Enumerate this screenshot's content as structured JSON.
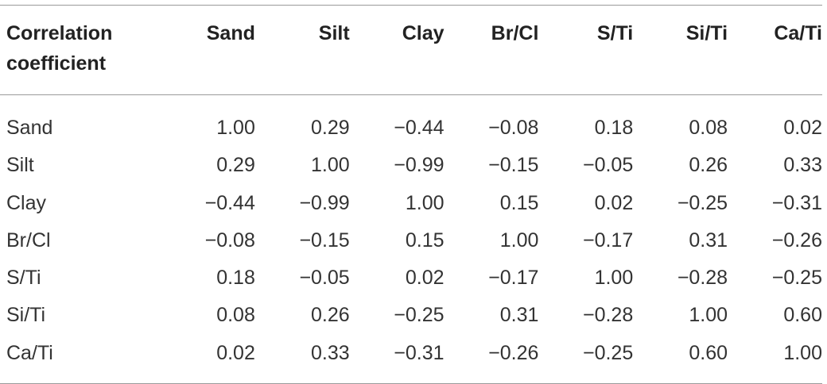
{
  "table": {
    "header": {
      "corner": [
        "Correlation",
        "coefficient"
      ],
      "columns": [
        "Sand",
        "Silt",
        "Clay",
        "Br/Cl",
        "S/Ti",
        "Si/Ti",
        "Ca/Ti"
      ]
    },
    "rows": [
      {
        "label": "Sand",
        "values": [
          "1.00",
          "0.29",
          "−0.44",
          "−0.08",
          "0.18",
          "0.08",
          "0.02"
        ]
      },
      {
        "label": "Silt",
        "values": [
          "0.29",
          "1.00",
          "−0.99",
          "−0.15",
          "−0.05",
          "0.26",
          "0.33"
        ]
      },
      {
        "label": "Clay",
        "values": [
          "−0.44",
          "−0.99",
          "1.00",
          "0.15",
          "0.02",
          "−0.25",
          "−0.31"
        ]
      },
      {
        "label": "Br/Cl",
        "values": [
          "−0.08",
          "−0.15",
          "0.15",
          "1.00",
          "−0.17",
          "0.31",
          "−0.26"
        ]
      },
      {
        "label": "S/Ti",
        "values": [
          "0.18",
          "−0.05",
          "0.02",
          "−0.17",
          "1.00",
          "−0.28",
          "−0.25"
        ]
      },
      {
        "label": "Si/Ti",
        "values": [
          "0.08",
          "0.26",
          "−0.25",
          "0.31",
          "−0.28",
          "1.00",
          "0.60"
        ]
      },
      {
        "label": "Ca/Ti",
        "values": [
          "0.02",
          "0.33",
          "−0.31",
          "−0.26",
          "−0.25",
          "0.60",
          "1.00"
        ]
      }
    ]
  }
}
